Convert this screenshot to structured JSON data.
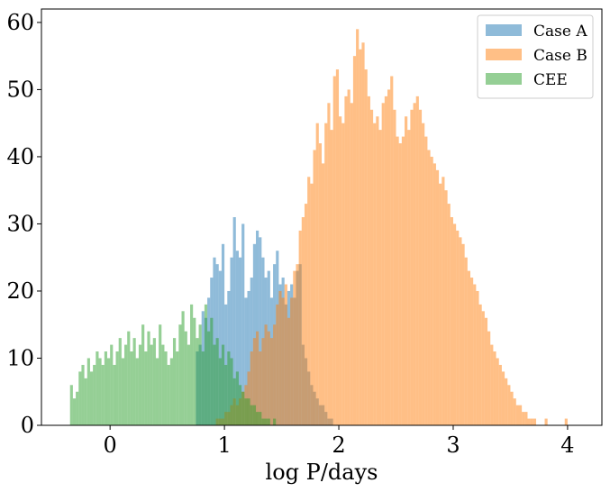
{
  "chart_data": {
    "type": "bar",
    "subtype": "overlaid-histogram",
    "title": "",
    "xlabel": "log P/days",
    "ylabel": "",
    "xlim": [
      -0.6,
      4.3
    ],
    "ylim": [
      0,
      62
    ],
    "xticks": [
      "0",
      "1",
      "2",
      "3",
      "4"
    ],
    "yticks": [
      "0",
      "10",
      "20",
      "30",
      "40",
      "50",
      "60"
    ],
    "grid": false,
    "legend_position": "top-right",
    "bin_width": 0.025,
    "series": [
      {
        "name": "Case A",
        "color": "#1f77b4",
        "opacity": 0.5,
        "bin_start": 0.75,
        "counts": [
          11,
          12,
          17,
          16,
          19,
          22,
          25,
          24,
          23,
          27,
          18,
          20,
          25,
          31,
          26,
          25,
          30,
          19,
          20,
          22,
          27,
          29,
          28,
          25,
          22,
          23,
          19,
          24,
          26,
          21,
          22,
          18,
          20,
          21,
          19,
          23,
          24,
          12,
          10,
          8,
          6,
          5,
          4,
          3,
          3,
          2,
          1,
          1,
          0,
          0,
          0,
          0,
          0,
          0,
          0,
          0,
          0,
          0,
          0,
          0,
          0,
          0,
          0,
          0,
          0,
          0,
          0,
          0,
          0,
          0,
          0,
          0,
          0,
          0,
          0,
          0,
          0,
          0,
          0,
          0,
          0,
          0,
          0,
          0,
          0,
          0,
          0,
          0,
          0,
          0,
          0,
          0,
          0,
          0,
          0,
          0,
          0,
          0,
          0,
          0,
          0,
          0,
          0,
          0,
          0,
          0,
          0,
          0,
          0,
          0,
          0,
          0,
          0,
          0,
          0,
          0,
          0,
          0,
          0,
          0,
          0,
          0,
          0,
          0,
          0,
          0,
          0,
          0
        ]
      },
      {
        "name": "Case B",
        "color": "#ff7f0e",
        "opacity": 0.5,
        "bin_start": 0.75,
        "counts": [
          0,
          0,
          0,
          0,
          0,
          0,
          0,
          1,
          1,
          1,
          2,
          2,
          3,
          4,
          3,
          4,
          5,
          6,
          8,
          11,
          13,
          14,
          11,
          13,
          15,
          14,
          13,
          15,
          18,
          20,
          19,
          21,
          16,
          19,
          23,
          24,
          29,
          31,
          33,
          37,
          36,
          41,
          45,
          42,
          39,
          45,
          48,
          44,
          52,
          53,
          46,
          45,
          49,
          50,
          48,
          55,
          59,
          56,
          57,
          53,
          49,
          47,
          45,
          46,
          44,
          48,
          49,
          50,
          52,
          47,
          43,
          42,
          43,
          46,
          44,
          47,
          48,
          49,
          47,
          45,
          43,
          41,
          40,
          39,
          38,
          36,
          37,
          35,
          33,
          31,
          30,
          29,
          28,
          27,
          25,
          23,
          22,
          21,
          20,
          18,
          17,
          16,
          14,
          12,
          11,
          10,
          9,
          8,
          7,
          6,
          5,
          4,
          3,
          3,
          2,
          2,
          1,
          1,
          1,
          0,
          0,
          0,
          1,
          0,
          0,
          0,
          0,
          0,
          0,
          1,
          0
        ]
      },
      {
        "name": "CEE",
        "color": "#2ca02c",
        "opacity": 0.5,
        "bin_start": -0.35,
        "counts": [
          6,
          4,
          5,
          8,
          9,
          7,
          10,
          8,
          9,
          11,
          10,
          9,
          11,
          10,
          12,
          9,
          11,
          13,
          10,
          12,
          14,
          11,
          13,
          10,
          12,
          15,
          11,
          14,
          12,
          13,
          10,
          15,
          12,
          11,
          9,
          10,
          13,
          11,
          15,
          17,
          14,
          12,
          18,
          16,
          13,
          15,
          11,
          18,
          14,
          16,
          12,
          13,
          10,
          12,
          9,
          11,
          10,
          7,
          8,
          6,
          5,
          4,
          4,
          3,
          3,
          2,
          2,
          1,
          1,
          1,
          0,
          1,
          0,
          0,
          0,
          0
        ]
      }
    ]
  },
  "legend": {
    "entries": [
      "Case A",
      "Case B",
      "CEE"
    ]
  }
}
